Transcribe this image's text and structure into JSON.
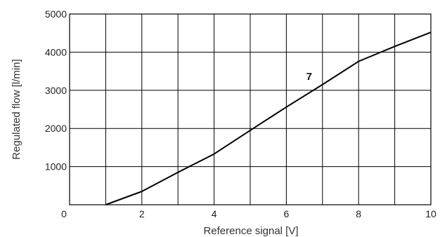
{
  "chart_data": {
    "type": "line",
    "title": "",
    "xlabel": "Reference signal [V]",
    "ylabel": "Regulated flow [l/min]",
    "xlim": [
      0,
      10
    ],
    "ylim": [
      0,
      5000
    ],
    "x_ticks": [
      0,
      2,
      4,
      6,
      8,
      10
    ],
    "y_ticks": [
      1000,
      2000,
      3000,
      4000,
      5000
    ],
    "x_tick_labels": [
      "0",
      "2",
      "4",
      "6",
      "8",
      "10"
    ],
    "y_tick_labels": [
      "1000",
      "2000",
      "3000",
      "4000",
      "5000"
    ],
    "grid": true,
    "series": [
      {
        "label": "7",
        "x": [
          1.0,
          2.0,
          3.0,
          4.0,
          5.0,
          6.0,
          7.0,
          8.0,
          9.0,
          10.0
        ],
        "y": [
          0,
          350,
          850,
          1330,
          1950,
          2560,
          3150,
          3760,
          4150,
          4520
        ]
      }
    ],
    "colors": {
      "line": "#000000",
      "grid": "#000000",
      "text": "#222222"
    }
  }
}
